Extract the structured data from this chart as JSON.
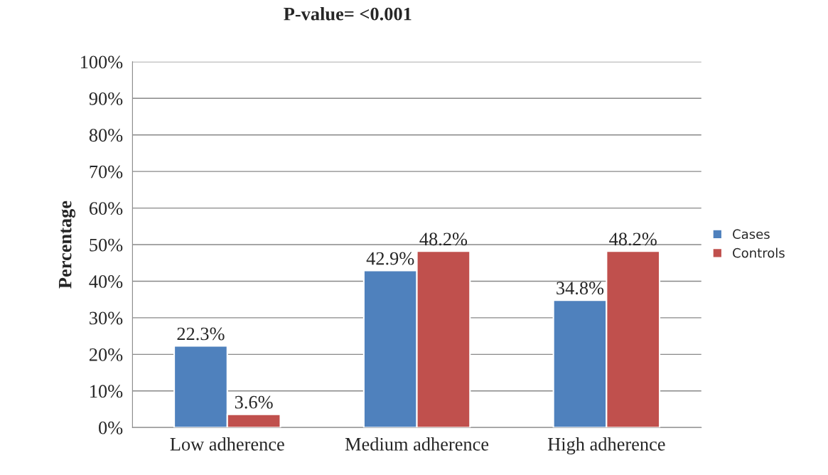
{
  "chart_data": {
    "type": "bar",
    "title": "P-value= <0.001",
    "ylabel": "Percentage",
    "categories": [
      "Low adherence",
      "Medium adherence",
      "High adherence"
    ],
    "series": [
      {
        "name": "Cases",
        "color": "#4f81bd",
        "values": [
          22.3,
          42.9,
          34.8
        ],
        "value_labels": [
          "22.3%",
          "42.9%",
          "34.8%"
        ]
      },
      {
        "name": "Controls",
        "color": "#c0504d",
        "values": [
          3.6,
          48.2,
          48.2
        ],
        "value_labels": [
          "3.6%",
          "48.2%",
          "48.2%"
        ]
      }
    ],
    "ylim": [
      0,
      100
    ],
    "yticks": [
      {
        "value": 0,
        "label": "0%"
      },
      {
        "value": 10,
        "label": "10%"
      },
      {
        "value": 20,
        "label": "20%"
      },
      {
        "value": 30,
        "label": "30%"
      },
      {
        "value": 40,
        "label": "40%"
      },
      {
        "value": 50,
        "label": "50%"
      },
      {
        "value": 60,
        "label": "60%"
      },
      {
        "value": 70,
        "label": "70%"
      },
      {
        "value": 80,
        "label": "80%"
      },
      {
        "value": 90,
        "label": "90%"
      },
      {
        "value": 100,
        "label": "100%"
      }
    ],
    "grid": "y",
    "legend": "right"
  }
}
